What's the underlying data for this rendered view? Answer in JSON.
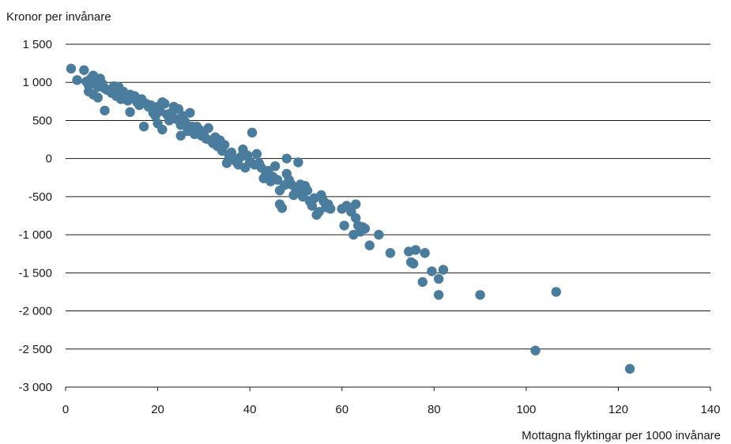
{
  "chart_data": {
    "type": "scatter",
    "ylabel": "Kronor per invånare",
    "xlabel": "Mottagna flyktingar per 1000 invånare",
    "xlim": [
      0,
      140
    ],
    "ylim": [
      -3000,
      1500
    ],
    "xticks": [
      0,
      20,
      40,
      60,
      80,
      100,
      120,
      140
    ],
    "yticks": [
      1500,
      1000,
      500,
      0,
      -500,
      -1000,
      -1500,
      -2000,
      -2500,
      -3000
    ],
    "ytick_labels": [
      "1 500",
      "1 000",
      "500",
      "0",
      "-500",
      "-1 000",
      "-1 500",
      "-2 000",
      "-2 500",
      "-3 000"
    ],
    "grid": "horizontal",
    "marker_color": "#4a7c9e",
    "points": [
      [
        1.2,
        1180
      ],
      [
        2.5,
        1030
      ],
      [
        4,
        1160
      ],
      [
        4.5,
        1010
      ],
      [
        5,
        960
      ],
      [
        5.5,
        1050
      ],
      [
        6,
        1090
      ],
      [
        6.5,
        1000
      ],
      [
        7,
        940
      ],
      [
        7.5,
        1050
      ],
      [
        8,
        980
      ],
      [
        8.5,
        920
      ],
      [
        5,
        880
      ],
      [
        6,
        840
      ],
      [
        7,
        800
      ],
      [
        8.5,
        630
      ],
      [
        9,
        900
      ],
      [
        10,
        860
      ],
      [
        10.5,
        950
      ],
      [
        11,
        820
      ],
      [
        11.5,
        940
      ],
      [
        12,
        780
      ],
      [
        12.5,
        880
      ],
      [
        13,
        800
      ],
      [
        13.5,
        760
      ],
      [
        14,
        610
      ],
      [
        14,
        840
      ],
      [
        15,
        820
      ],
      [
        15.5,
        740
      ],
      [
        16,
        700
      ],
      [
        16.5,
        780
      ],
      [
        17,
        420
      ],
      [
        17.5,
        720
      ],
      [
        18,
        680
      ],
      [
        18.5,
        700
      ],
      [
        19,
        600
      ],
      [
        19.5,
        560
      ],
      [
        20,
        680
      ],
      [
        20.5,
        620
      ],
      [
        21,
        740
      ],
      [
        21.5,
        720
      ],
      [
        20,
        460
      ],
      [
        21,
        380
      ],
      [
        22,
        580
      ],
      [
        22.5,
        500
      ],
      [
        23,
        600
      ],
      [
        23.5,
        680
      ],
      [
        24,
        520
      ],
      [
        24.5,
        650
      ],
      [
        25,
        440
      ],
      [
        25.5,
        560
      ],
      [
        25,
        300
      ],
      [
        26,
        480
      ],
      [
        26.5,
        360
      ],
      [
        27,
        600
      ],
      [
        27.5,
        420
      ],
      [
        28,
        320
      ],
      [
        28.5,
        420
      ],
      [
        29,
        380
      ],
      [
        29.5,
        300
      ],
      [
        30,
        340
      ],
      [
        30.5,
        260
      ],
      [
        31,
        400
      ],
      [
        31.5,
        240
      ],
      [
        32,
        200
      ],
      [
        32.5,
        280
      ],
      [
        33,
        160
      ],
      [
        33.5,
        240
      ],
      [
        34,
        100
      ],
      [
        34.5,
        180
      ],
      [
        35,
        -60
      ],
      [
        35.5,
        40
      ],
      [
        36,
        80
      ],
      [
        36.5,
        0
      ],
      [
        37,
        -40
      ],
      [
        37.5,
        -80
      ],
      [
        38,
        20
      ],
      [
        38.5,
        120
      ],
      [
        39,
        -120
      ],
      [
        39.5,
        40
      ],
      [
        40,
        -40
      ],
      [
        40.5,
        340
      ],
      [
        41,
        -80
      ],
      [
        41.5,
        60
      ],
      [
        42,
        -60
      ],
      [
        42.5,
        -120
      ],
      [
        43,
        -260
      ],
      [
        43.5,
        -200
      ],
      [
        44,
        -160
      ],
      [
        44.5,
        -300
      ],
      [
        45,
        -240
      ],
      [
        45.5,
        -100
      ],
      [
        46,
        -280
      ],
      [
        46.5,
        -420
      ],
      [
        46.5,
        -600
      ],
      [
        47,
        -650
      ],
      [
        47.5,
        -350
      ],
      [
        48,
        -200
      ],
      [
        48,
        0
      ],
      [
        48.5,
        -280
      ],
      [
        49,
        -340
      ],
      [
        49.5,
        -480
      ],
      [
        50,
        -400
      ],
      [
        50.5,
        -450
      ],
      [
        50.5,
        -50
      ],
      [
        51,
        -340
      ],
      [
        51.5,
        -500
      ],
      [
        52,
        -360
      ],
      [
        52.5,
        -420
      ],
      [
        53,
        -560
      ],
      [
        53.5,
        -620
      ],
      [
        54,
        -520
      ],
      [
        54.5,
        -740
      ],
      [
        55,
        -700
      ],
      [
        55.5,
        -480
      ],
      [
        56,
        -560
      ],
      [
        56.5,
        -640
      ],
      [
        57,
        -600
      ],
      [
        57.5,
        -660
      ],
      [
        60,
        -660
      ],
      [
        60.5,
        -880
      ],
      [
        61,
        -620
      ],
      [
        62,
        -700
      ],
      [
        62.5,
        -1000
      ],
      [
        63,
        -600
      ],
      [
        63,
        -780
      ],
      [
        63.5,
        -880
      ],
      [
        64,
        -960
      ],
      [
        64.5,
        -900
      ],
      [
        65,
        -920
      ],
      [
        66,
        -1140
      ],
      [
        68,
        -1000
      ],
      [
        70.5,
        -1240
      ],
      [
        74.5,
        -1220
      ],
      [
        75,
        -1360
      ],
      [
        75.5,
        -1380
      ],
      [
        76,
        -1200
      ],
      [
        77.5,
        -1620
      ],
      [
        78,
        -1240
      ],
      [
        79.5,
        -1480
      ],
      [
        81,
        -1580
      ],
      [
        81,
        -1790
      ],
      [
        82,
        -1460
      ],
      [
        90,
        -1790
      ],
      [
        102,
        -2520
      ],
      [
        106.5,
        -1750
      ],
      [
        122.5,
        -2760
      ]
    ]
  }
}
